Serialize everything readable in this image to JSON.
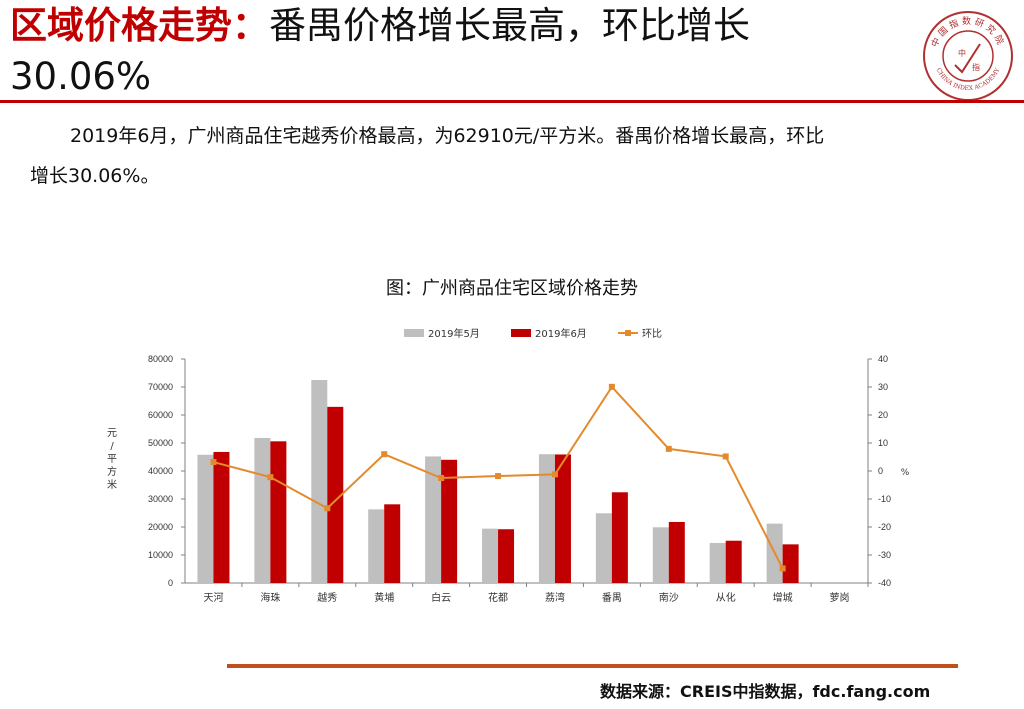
{
  "header": {
    "title_red": "区域价格走势：",
    "title_black": "番禺价格增长最高，环比增长",
    "title_line2": "30.06%"
  },
  "summary": {
    "line1": "2019年6月，广州商品住宅越秀价格最高，为62910元/平方米。番禺价格增长最高，环比",
    "line2": "增长30.06%。"
  },
  "footer": {
    "source": "数据来源：CREIS中指数据，fdc.fang.com"
  },
  "logo": {
    "top_text": "中国指数研究院",
    "bottom_text": "CHINA INDEX ACADEMY",
    "center_text_1": "中",
    "center_text_2": "指",
    "icon": "china-index-academy-seal"
  },
  "colors": {
    "accent": "#c00000",
    "series_may": "#bfbfbf",
    "series_june": "#c00000",
    "series_mom": "#e38b2c",
    "bottom_rule": "#c0501b"
  },
  "chart_data": {
    "type": "bar",
    "title": "图：广州商品住宅区域价格走势",
    "ylabel": "元/平方米",
    "y2label": "%",
    "ylim": [
      0,
      80000
    ],
    "y2lim": [
      -40,
      40
    ],
    "yticks": [
      "0",
      "10000",
      "20000",
      "30000",
      "40000",
      "50000",
      "60000",
      "70000",
      "80000"
    ],
    "y2ticks": [
      "-40",
      "-30",
      "-20",
      "-10",
      "0",
      "10",
      "20",
      "30",
      "40"
    ],
    "legend_position": "top-center",
    "grid": false,
    "categories": [
      "天河",
      "海珠",
      "越秀",
      "黄埔",
      "白云",
      "花都",
      "荔湾",
      "番禺",
      "南沙",
      "从化",
      "增城",
      "萝岗"
    ],
    "series": [
      {
        "name": "2019年5月",
        "type": "bar",
        "axis": "left",
        "values": [
          45800,
          51800,
          72500,
          26300,
          45200,
          19400,
          46000,
          24900,
          19900,
          14300,
          21200,
          null
        ]
      },
      {
        "name": "2019年6月",
        "type": "bar",
        "axis": "left",
        "values": [
          46800,
          50600,
          62910,
          28100,
          44000,
          19200,
          45900,
          32400,
          21800,
          15100,
          13800,
          null
        ]
      },
      {
        "name": "环比",
        "type": "line",
        "axis": "right",
        "values": [
          3.2,
          -2.2,
          -13.3,
          6.0,
          -2.5,
          -1.8,
          -1.2,
          30.06,
          7.9,
          5.2,
          -34.8,
          null
        ]
      }
    ]
  }
}
